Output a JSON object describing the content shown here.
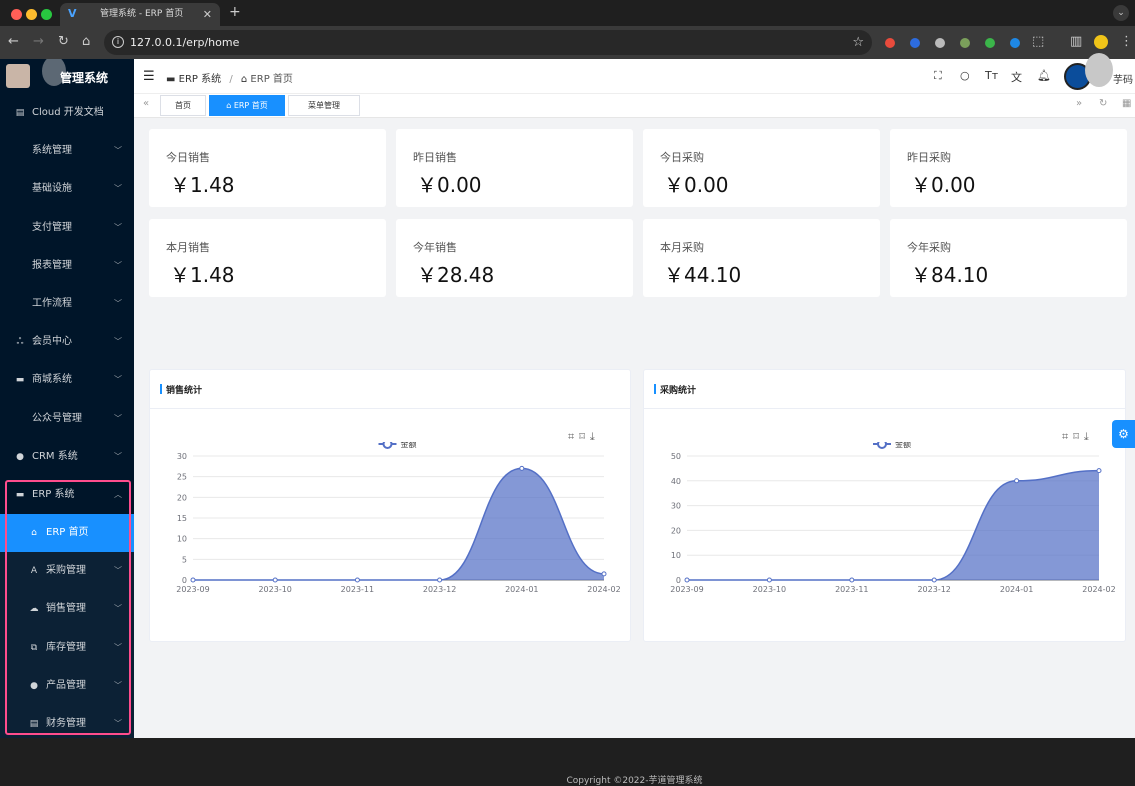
{
  "browser": {
    "tab_title": "管理系统 - ERP 首页",
    "url": "127.0.0.1/erp/home"
  },
  "app": {
    "title": "管理系统",
    "user_suffix": "芋码"
  },
  "sidebar": {
    "items": [
      {
        "label": "Cloud 开发文档",
        "icon": "doc-icon",
        "type": "top"
      },
      {
        "label": "系统管理",
        "type": "plain"
      },
      {
        "label": "基础设施",
        "type": "plain"
      },
      {
        "label": "支付管理",
        "type": "plain"
      },
      {
        "label": "报表管理",
        "type": "plain"
      },
      {
        "label": "工作流程",
        "type": "plain"
      },
      {
        "label": "会员中心",
        "icon": "members-icon",
        "type": "top"
      },
      {
        "label": "商城系统",
        "icon": "shop-icon",
        "type": "top"
      },
      {
        "label": "公众号管理",
        "type": "plain"
      },
      {
        "label": "CRM 系统",
        "icon": "user-icon",
        "type": "top"
      },
      {
        "label": "ERP 系统",
        "icon": "erp-icon",
        "type": "open"
      },
      {
        "label": "ERP 首页",
        "icon": "home-icon",
        "type": "active"
      },
      {
        "label": "采购管理",
        "icon": "purchase-icon",
        "type": "sub"
      },
      {
        "label": "销售管理",
        "icon": "sales-icon",
        "type": "sub"
      },
      {
        "label": "库存管理",
        "icon": "stock-icon",
        "type": "sub"
      },
      {
        "label": "产品管理",
        "icon": "product-icon",
        "type": "sub"
      },
      {
        "label": "财务管理",
        "icon": "finance-icon",
        "type": "sub"
      }
    ]
  },
  "breadcrumb": {
    "root": "ERP 系统",
    "current": "ERP 首页"
  },
  "tags": [
    "首页",
    "ERP 首页",
    "菜单管理"
  ],
  "cards": [
    {
      "label": "今日销售",
      "value": "￥1.48"
    },
    {
      "label": "昨日销售",
      "value": "￥0.00"
    },
    {
      "label": "今日采购",
      "value": "￥0.00"
    },
    {
      "label": "昨日采购",
      "value": "￥0.00"
    },
    {
      "label": "本月销售",
      "value": "￥1.48"
    },
    {
      "label": "今年销售",
      "value": "￥28.48"
    },
    {
      "label": "本月采购",
      "value": "￥44.10"
    },
    {
      "label": "今年采购",
      "value": "￥84.10"
    }
  ],
  "chart_data": [
    {
      "type": "area",
      "title": "销售统计",
      "x": [
        "2023-09",
        "2023-10",
        "2023-11",
        "2023-12",
        "2024-01",
        "2024-02"
      ],
      "series": [
        {
          "name": "金额",
          "values": [
            0,
            0,
            0,
            0,
            27,
            1.48
          ]
        }
      ],
      "ylim": [
        0,
        30
      ],
      "yticks": [
        0,
        5,
        10,
        15,
        20,
        25,
        30
      ],
      "legend": "top-center",
      "color": "#5470c6"
    },
    {
      "type": "area",
      "title": "采购统计",
      "x": [
        "2023-09",
        "2023-10",
        "2023-11",
        "2023-12",
        "2024-01",
        "2024-02"
      ],
      "series": [
        {
          "name": "金额",
          "values": [
            0,
            0,
            0,
            0,
            40,
            44.1
          ]
        }
      ],
      "ylim": [
        0,
        50
      ],
      "yticks": [
        0,
        10,
        20,
        30,
        40,
        50
      ],
      "legend": "top-center",
      "color": "#5470c6"
    }
  ],
  "footer": "Copyright ©2022-芋道管理系统"
}
